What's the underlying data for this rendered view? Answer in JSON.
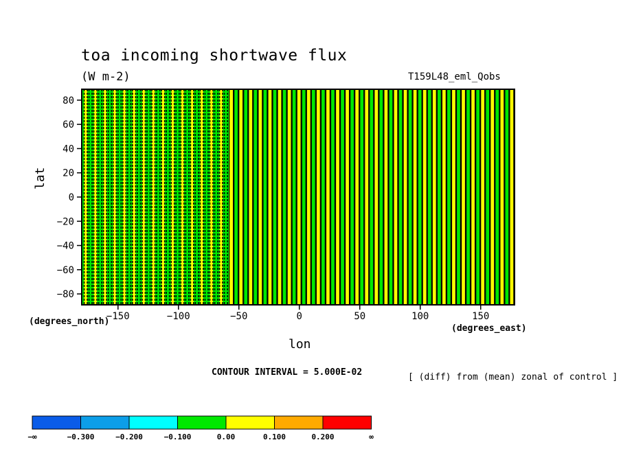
{
  "chart_data": {
    "type": "heatmap",
    "title": "toa incoming shortwave flux",
    "units": "(W m-2)",
    "run_name": "T159L48_eml_Qobs",
    "xlabel": "lon",
    "ylabel": "lat",
    "x_unit": "(degrees_east)",
    "y_unit": "(degrees_north)",
    "xlim": [
      -180,
      178
    ],
    "ylim": [
      -89,
      89
    ],
    "x_ticks": [
      -150,
      -100,
      -50,
      0,
      50,
      100,
      150
    ],
    "x_tick_labels": [
      "−150",
      "−100",
      "−50",
      "0",
      "50",
      "100",
      "150"
    ],
    "y_ticks": [
      80,
      60,
      40,
      20,
      0,
      -20,
      -40,
      -60,
      -80
    ],
    "y_tick_labels": [
      "80",
      "60",
      "40",
      "20",
      "0",
      "−20",
      "−40",
      "−60",
      "−80"
    ],
    "contour_interval_label": "CONTOUR INTERVAL = 5.000E-02",
    "note": "[ (diff) from (mean) zonal of control ]",
    "pattern": "vertical stripes alternating between the 0.00 to 0.100 class and the -0.100 to 0.00 class, with thin black contour lines; denser green bands west of about -60",
    "stripe_spacing_deg": 8,
    "colorbar": {
      "colors": [
        "#0a5ce8",
        "#0c9ee8",
        "#00ffff",
        "#00e800",
        "#ffff00",
        "#ffaa00",
        "#ff0000"
      ],
      "labels": [
        "−∞",
        "−0.300",
        "−0.200",
        "−0.100",
        "0.00",
        "0.100",
        "0.200",
        "∞"
      ]
    }
  }
}
